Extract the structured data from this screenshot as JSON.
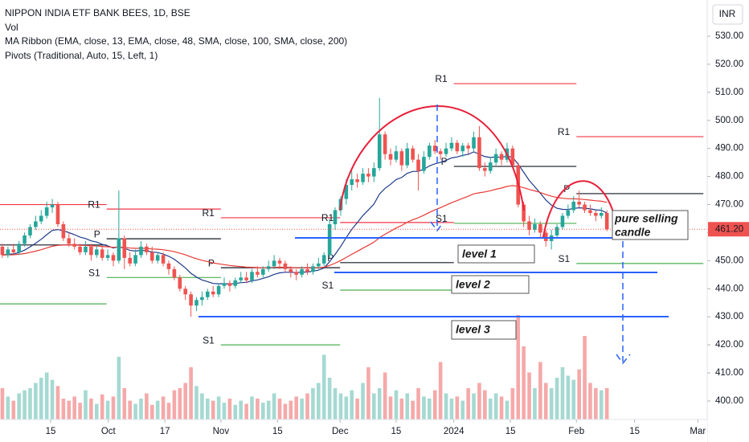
{
  "chart_data": {
    "type": "candlestick",
    "title": "NIPPON INDIA ETF BANK BEES, 1D, BSE",
    "legend_lines": [
      "Vol",
      "MA Ribbon (EMA, close, 13, EMA, close, 48, SMA, close, 100, SMA, close, 200)",
      "Pivots (Traditional, Auto, 15, Left, 1)"
    ],
    "currency": "INR",
    "up_color": "#26a69a",
    "down_color": "#ef5350",
    "volume_up_color": "#a5d9d2",
    "volume_down_color": "#f5a9a9",
    "open": [
      455,
      452,
      454,
      453,
      456,
      459,
      462,
      464,
      466,
      469,
      470,
      463,
      458,
      456,
      455,
      453,
      455,
      452,
      454,
      451,
      452,
      450,
      458,
      451,
      449,
      452,
      455,
      453,
      450,
      452,
      449,
      447,
      444,
      440,
      438,
      434,
      436,
      437,
      439,
      438,
      441,
      442,
      441,
      443,
      444,
      443,
      446,
      445,
      447,
      448,
      450,
      449,
      447,
      446,
      445,
      447,
      446,
      448,
      449,
      452,
      463,
      468,
      472,
      477,
      479,
      478,
      481,
      480,
      483,
      495,
      488,
      486,
      489,
      484,
      490,
      486,
      482,
      487,
      491,
      489,
      488,
      490,
      492,
      489,
      491,
      490,
      494,
      483,
      482,
      485,
      488,
      486,
      490,
      484,
      470,
      464,
      461,
      463,
      460,
      457,
      459,
      462,
      466,
      468,
      471,
      470,
      468,
      467,
      466,
      467
    ],
    "high": [
      456,
      455,
      456,
      457,
      460,
      463,
      466,
      468,
      471,
      472,
      471,
      464,
      460,
      458,
      456,
      457,
      456,
      456,
      455,
      454,
      453,
      475,
      459,
      453,
      454,
      457,
      456,
      455,
      453,
      453,
      450,
      448,
      445,
      441,
      439,
      437,
      439,
      440,
      441,
      442,
      444,
      443,
      444,
      446,
      446,
      447,
      448,
      448,
      450,
      452,
      451,
      450,
      448,
      447,
      448,
      449,
      449,
      451,
      453,
      465,
      469,
      473,
      479,
      482,
      481,
      483,
      483,
      485,
      508,
      496,
      490,
      491,
      490,
      492,
      491,
      488,
      489,
      492,
      493,
      490,
      492,
      494,
      493,
      492,
      492,
      496,
      498,
      485,
      487,
      490,
      489,
      492,
      491,
      485,
      471,
      466,
      465,
      464,
      461,
      461,
      463,
      467,
      470,
      473,
      475,
      471,
      470,
      468,
      469,
      468
    ],
    "low": [
      451,
      451,
      452,
      452,
      455,
      458,
      461,
      463,
      465,
      467,
      462,
      457,
      455,
      454,
      452,
      452,
      450,
      451,
      450,
      450,
      448,
      449,
      447,
      448,
      448,
      451,
      452,
      449,
      449,
      448,
      445,
      443,
      439,
      436,
      430,
      432,
      434,
      436,
      437,
      437,
      440,
      439,
      440,
      442,
      442,
      442,
      444,
      444,
      446,
      447,
      447,
      446,
      444,
      443,
      444,
      445,
      445,
      447,
      448,
      451,
      461,
      466,
      470,
      475,
      476,
      477,
      478,
      478,
      482,
      486,
      484,
      485,
      482,
      483,
      485,
      475,
      481,
      486,
      488,
      486,
      487,
      489,
      488,
      487,
      488,
      489,
      482,
      480,
      481,
      484,
      484,
      485,
      483,
      469,
      462,
      459,
      460,
      458,
      455,
      454,
      458,
      461,
      465,
      467,
      469,
      467,
      466,
      464,
      465,
      460.5
    ],
    "close": [
      452,
      454,
      453,
      456,
      459,
      462,
      464,
      466,
      469,
      470,
      463,
      458,
      456,
      455,
      453,
      455,
      452,
      454,
      451,
      452,
      450,
      458,
      451,
      449,
      452,
      455,
      453,
      450,
      452,
      449,
      447,
      444,
      440,
      438,
      434,
      436,
      437,
      439,
      438,
      441,
      442,
      441,
      443,
      444,
      443,
      446,
      445,
      447,
      448,
      450,
      449,
      447,
      446,
      445,
      447,
      446,
      448,
      449,
      452,
      463,
      468,
      472,
      477,
      479,
      478,
      481,
      480,
      483,
      495,
      488,
      486,
      489,
      484,
      490,
      486,
      482,
      487,
      491,
      489,
      488,
      490,
      492,
      489,
      491,
      490,
      494,
      483,
      482,
      485,
      488,
      486,
      490,
      484,
      470,
      464,
      461,
      463,
      460,
      457,
      459,
      462,
      466,
      468,
      471,
      470,
      468,
      467,
      466,
      467,
      461.2
    ],
    "volume": [
      30,
      22,
      18,
      25,
      28,
      30,
      35,
      40,
      45,
      38,
      32,
      20,
      18,
      22,
      16,
      28,
      20,
      15,
      24,
      18,
      22,
      60,
      30,
      18,
      15,
      20,
      25,
      14,
      18,
      22,
      16,
      28,
      30,
      35,
      50,
      32,
      25,
      20,
      18,
      22,
      16,
      20,
      14,
      18,
      15,
      22,
      20,
      16,
      18,
      25,
      20,
      15,
      18,
      22,
      20,
      25,
      30,
      35,
      62,
      40,
      30,
      25,
      22,
      28,
      20,
      35,
      50,
      25,
      30,
      45,
      22,
      28,
      20,
      25,
      18,
      30,
      22,
      20,
      28,
      55,
      25,
      20,
      22,
      18,
      30,
      25,
      35,
      28,
      20,
      25,
      22,
      18,
      30,
      100,
      70,
      45,
      30,
      55,
      35,
      30,
      40,
      50,
      42,
      38,
      48,
      80,
      35,
      30,
      28,
      30
    ],
    "vlim": [
      0,
      100
    ],
    "ylim": [
      393.4,
      542.9
    ],
    "yticks": [
      {
        "value": 400,
        "label": "400.00"
      },
      {
        "value": 410,
        "label": "410.00"
      },
      {
        "value": 420,
        "label": "420.00"
      },
      {
        "value": 430,
        "label": "430.00"
      },
      {
        "value": 440,
        "label": "440.00"
      },
      {
        "value": 450,
        "label": "450.00"
      },
      {
        "value": 460,
        "label": "460.00"
      },
      {
        "value": 470,
        "label": "470.00"
      },
      {
        "value": 480,
        "label": "480.00"
      },
      {
        "value": 490,
        "label": "490.00"
      },
      {
        "value": 500,
        "label": "500.00"
      },
      {
        "value": 510,
        "label": "510.00"
      },
      {
        "value": 520,
        "label": "520.00"
      },
      {
        "value": 530,
        "label": "530.00"
      }
    ],
    "xlim": [
      -0.43,
      126.8
    ],
    "xticks": [
      {
        "value": 8.7,
        "label": "15"
      },
      {
        "value": 19.1,
        "label": "Oct"
      },
      {
        "value": 29.3,
        "label": "17"
      },
      {
        "value": 39.4,
        "label": "Nov"
      },
      {
        "value": 49.6,
        "label": "15"
      },
      {
        "value": 60.9,
        "label": "Dec"
      },
      {
        "value": 71,
        "label": "15"
      },
      {
        "value": 81.4,
        "label": "2024"
      },
      {
        "value": 91.6,
        "label": "15"
      },
      {
        "value": 103.5,
        "label": "Feb"
      },
      {
        "value": 114,
        "label": "15"
      },
      {
        "value": 125.4,
        "label": "Mar"
      }
    ],
    "ema_periods": [
      13,
      48
    ],
    "ema_colors": [
      "#1e3a8a",
      "#e53935"
    ],
    "pivots": [
      {
        "label": null,
        "value": 470,
        "from": -0.43,
        "to": 18.8,
        "color": "#f23645"
      },
      {
        "label": null,
        "value": 455.6,
        "from": -0.43,
        "to": 18.8,
        "color": "#131722"
      },
      {
        "label": null,
        "value": 434.6,
        "from": -0.43,
        "to": 18.8,
        "color": "#4caf50"
      },
      {
        "label": "R1",
        "value": 468.4,
        "from": 18.8,
        "to": 39.4,
        "color": "#f23645"
      },
      {
        "label": "P",
        "value": 457.8,
        "from": 18.8,
        "to": 39.4,
        "color": "#131722"
      },
      {
        "label": "S1",
        "value": 444,
        "from": 18.8,
        "to": 39.4,
        "color": "#4caf50"
      },
      {
        "label": "R1",
        "value": 465.3,
        "from": 39.4,
        "to": 60.9,
        "color": "#f23645"
      },
      {
        "label": "P",
        "value": 447.5,
        "from": 39.4,
        "to": 60.9,
        "color": "#131722"
      },
      {
        "label": "S1",
        "value": 420,
        "from": 39.4,
        "to": 60.9,
        "color": "#4caf50"
      },
      {
        "label": "R1",
        "value": 463.6,
        "from": 60.9,
        "to": 81.4,
        "color": "#f23645"
      },
      {
        "label": "P",
        "value": 449.3,
        "from": 60.9,
        "to": 81.4,
        "color": "#131722"
      },
      {
        "label": "S1",
        "value": 439.5,
        "from": 60.9,
        "to": 81.4,
        "color": "#4caf50"
      },
      {
        "label": "R1",
        "value": 513.1,
        "from": 81.4,
        "to": 103.5,
        "color": "#f23645"
      },
      {
        "label": "P",
        "value": 483.6,
        "from": 81.4,
        "to": 103.5,
        "color": "#131722"
      },
      {
        "label": "S1",
        "value": 463.3,
        "from": 81.4,
        "to": 103.5,
        "color": "#4caf50"
      },
      {
        "label": "R1",
        "value": 494.2,
        "from": 103.5,
        "to": 126.4,
        "color": "#f23645"
      },
      {
        "label": "P",
        "value": 473.9,
        "from": 103.5,
        "to": 126.4,
        "color": "#131722"
      },
      {
        "label": "S1",
        "value": 449,
        "from": 103.5,
        "to": 126.4,
        "color": "#4caf50"
      }
    ],
    "last_price_label": "461.20",
    "annotations": [
      "level 1",
      "level 2",
      "level  3",
      "pure selling",
      "candle"
    ]
  }
}
